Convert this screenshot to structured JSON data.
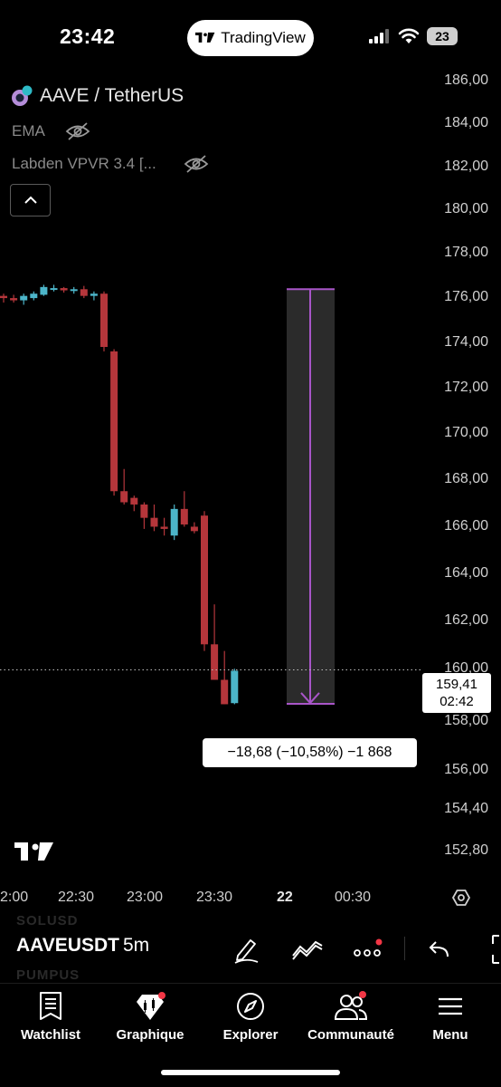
{
  "status_bar": {
    "time": "23:42",
    "app_pill": "TradingView",
    "battery": "23"
  },
  "header": {
    "symbol": "AAVE / TetherUS",
    "indicators": [
      {
        "label": "EMA"
      },
      {
        "label": "Labden VPVR 3.4 [..."
      }
    ]
  },
  "price_axis": [
    "186,00",
    "184,00",
    "182,00",
    "180,00",
    "178,00",
    "176,00",
    "174,00",
    "172,00",
    "170,00",
    "168,00",
    "166,00",
    "164,00",
    "162,00",
    "160,00",
    "158,00",
    "156,00",
    "154,40",
    "152,80"
  ],
  "time_axis": [
    {
      "label": "2:00",
      "bold": false
    },
    {
      "label": "22:30",
      "bold": false
    },
    {
      "label": "23:00",
      "bold": false
    },
    {
      "label": "23:30",
      "bold": false
    },
    {
      "label": "22",
      "bold": true
    },
    {
      "label": "00:30",
      "bold": false
    }
  ],
  "current_price": {
    "price": "159,41",
    "countdown": "02:42"
  },
  "measure": {
    "label": "−18,68 (−10,58%) −1 868",
    "from_price": 176.6,
    "to_price": 157.92
  },
  "chart_data": {
    "type": "candlestick",
    "symbol": "AAVEUSDT",
    "interval": "5m",
    "candles": [
      {
        "o": 176.3,
        "h": 176.4,
        "l": 176.0,
        "c": 176.2
      },
      {
        "o": 176.2,
        "h": 176.35,
        "l": 176.0,
        "c": 176.1
      },
      {
        "o": 176.1,
        "h": 176.4,
        "l": 175.9,
        "c": 176.3
      },
      {
        "o": 176.2,
        "h": 176.5,
        "l": 176.1,
        "c": 176.4
      },
      {
        "o": 176.35,
        "h": 176.8,
        "l": 176.3,
        "c": 176.7
      },
      {
        "o": 176.6,
        "h": 176.8,
        "l": 176.5,
        "c": 176.65
      },
      {
        "o": 176.65,
        "h": 176.7,
        "l": 176.45,
        "c": 176.55
      },
      {
        "o": 176.55,
        "h": 176.7,
        "l": 176.4,
        "c": 176.6
      },
      {
        "o": 176.6,
        "h": 176.75,
        "l": 176.2,
        "c": 176.3
      },
      {
        "o": 176.3,
        "h": 176.5,
        "l": 176.1,
        "c": 176.4
      },
      {
        "o": 176.4,
        "h": 176.5,
        "l": 173.8,
        "c": 174.0
      },
      {
        "o": 173.8,
        "h": 173.9,
        "l": 167.3,
        "c": 167.5
      },
      {
        "o": 167.5,
        "h": 168.5,
        "l": 166.9,
        "c": 167.0
      },
      {
        "o": 167.2,
        "h": 167.3,
        "l": 166.6,
        "c": 166.9
      },
      {
        "o": 166.9,
        "h": 167.0,
        "l": 165.8,
        "c": 166.3
      },
      {
        "o": 166.3,
        "h": 166.9,
        "l": 165.7,
        "c": 165.9
      },
      {
        "o": 165.9,
        "h": 166.3,
        "l": 165.5,
        "c": 165.8
      },
      {
        "o": 165.5,
        "h": 166.9,
        "l": 165.3,
        "c": 166.7
      },
      {
        "o": 166.7,
        "h": 167.5,
        "l": 165.9,
        "c": 166.0
      },
      {
        "o": 165.9,
        "h": 166.1,
        "l": 165.6,
        "c": 165.7
      },
      {
        "o": 166.4,
        "h": 166.6,
        "l": 160.3,
        "c": 160.6
      },
      {
        "o": 160.6,
        "h": 162.4,
        "l": 159.0,
        "c": 159.0
      },
      {
        "o": 159.0,
        "h": 160.3,
        "l": 157.9,
        "c": 157.9
      },
      {
        "o": 157.95,
        "h": 159.5,
        "l": 157.9,
        "c": 159.41
      }
    ],
    "colors": {
      "up": "#4cb5c9",
      "down": "#b5363b"
    }
  },
  "toolbar": {
    "symbol": "AAVEUSDT",
    "interval": "5m",
    "ghost_above": "SOLUSD",
    "ghost_below": "PUMPUS"
  },
  "nav": [
    {
      "label": "Watchlist",
      "icon": "watchlist-icon"
    },
    {
      "label": "Graphique",
      "icon": "chart-icon"
    },
    {
      "label": "Explorer",
      "icon": "compass-icon"
    },
    {
      "label": "Communauté",
      "icon": "community-icon"
    },
    {
      "label": "Menu",
      "icon": "menu-icon"
    }
  ],
  "colors": {
    "accent": "#2962ff",
    "measure": "#a855c8",
    "badge": "#f23645"
  }
}
